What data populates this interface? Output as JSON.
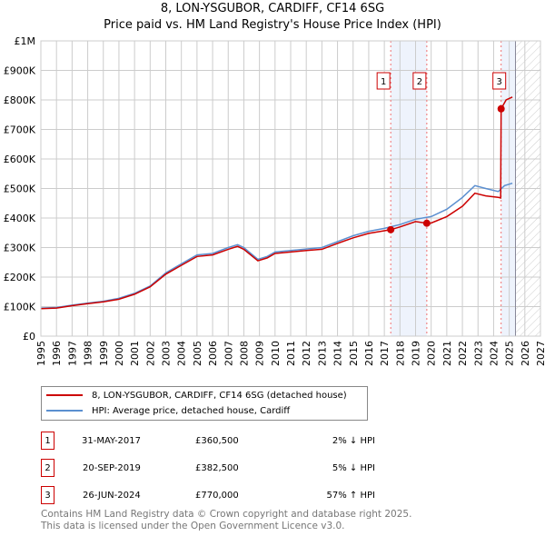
{
  "title": "8, LON-YSGUBOR, CARDIFF, CF14 6SG",
  "subtitle": "Price paid vs. HM Land Registry's House Price Index (HPI)",
  "chart_data": {
    "type": "line",
    "xlim": [
      1995,
      2027
    ],
    "ylim": [
      0,
      1000000
    ],
    "x_ticks": [
      1995,
      1996,
      1997,
      1998,
      1999,
      2000,
      2001,
      2002,
      2003,
      2004,
      2005,
      2006,
      2007,
      2008,
      2009,
      2010,
      2011,
      2012,
      2013,
      2014,
      2015,
      2016,
      2017,
      2018,
      2019,
      2020,
      2021,
      2022,
      2023,
      2024,
      2025,
      2026,
      2027
    ],
    "y_ticks": [
      0,
      100000,
      200000,
      300000,
      400000,
      500000,
      600000,
      700000,
      800000,
      900000,
      1000000
    ],
    "y_tick_labels": [
      "£0",
      "£100K",
      "£200K",
      "£300K",
      "£400K",
      "£500K",
      "£600K",
      "£700K",
      "£800K",
      "£900K",
      "£1M"
    ],
    "forecast_start": 2025.4,
    "series": [
      {
        "name": "8, LON-YSGUBOR, CARDIFF, CF14 6SG (detached house)",
        "color": "#cc0000",
        "x": [
          1995,
          1996,
          1997,
          1998,
          1999,
          2000,
          2001,
          2002,
          2003,
          2004,
          2005,
          2006,
          2007,
          2007.6,
          2008,
          2008.9,
          2009.5,
          2010,
          2011,
          2012,
          2013,
          2014,
          2015,
          2016,
          2017,
          2017.41,
          2018,
          2019,
          2019.72,
          2020,
          2021,
          2022,
          2022.8,
          2023.5,
          2024.3,
          2024.45,
          2024.48,
          2024.8,
          2025.2
        ],
        "y": [
          93000,
          95000,
          103000,
          110000,
          116000,
          125000,
          142000,
          167000,
          210000,
          240000,
          270000,
          275000,
          294000,
          304000,
          294000,
          255000,
          265000,
          280000,
          285000,
          290000,
          294000,
          314000,
          333000,
          348000,
          357000,
          360500,
          370000,
          388000,
          382500,
          383000,
          405000,
          440000,
          484000,
          475000,
          470000,
          468000,
          770000,
          800000,
          810000
        ]
      },
      {
        "name": "HPI: Average price, detached house, Cardiff",
        "color": "#5b8fd0",
        "x": [
          1995,
          1996,
          1997,
          1998,
          1999,
          2000,
          2001,
          2002,
          2003,
          2004,
          2005,
          2006,
          2007,
          2007.6,
          2008,
          2008.9,
          2009.5,
          2010,
          2011,
          2012,
          2013,
          2014,
          2015,
          2016,
          2017,
          2018,
          2019,
          2020,
          2021,
          2022,
          2022.8,
          2023.5,
          2024.3,
          2024.7,
          2025.2
        ],
        "y": [
          95000,
          97000,
          105000,
          112000,
          118000,
          128000,
          145000,
          170000,
          214000,
          245000,
          275000,
          280000,
          300000,
          310000,
          300000,
          260000,
          270000,
          285000,
          290000,
          295000,
          300000,
          320000,
          340000,
          355000,
          365000,
          378000,
          396000,
          405000,
          430000,
          470000,
          510000,
          500000,
          490000,
          510000,
          518000
        ]
      }
    ],
    "sales": [
      {
        "label": "1",
        "x": 2017.41,
        "y": 360500
      },
      {
        "label": "2",
        "x": 2019.72,
        "y": 382500
      },
      {
        "label": "3",
        "x": 2024.48,
        "y": 770000
      }
    ],
    "legend_placement": "bottom"
  },
  "legend": {
    "price_paid": "8, LON-YSGUBOR, CARDIFF, CF14 6SG (detached house)",
    "hpi": "HPI: Average price, detached house, Cardiff"
  },
  "transactions": [
    {
      "num": "1",
      "date": "31-MAY-2017",
      "price": "£360,500",
      "delta": "2% ↓ HPI"
    },
    {
      "num": "2",
      "date": "20-SEP-2019",
      "price": "£382,500",
      "delta": "5% ↓ HPI"
    },
    {
      "num": "3",
      "date": "26-JUN-2024",
      "price": "£770,000",
      "delta": "57% ↑ HPI"
    }
  ],
  "footer": {
    "line1": "Contains HM Land Registry data © Crown copyright and database right 2025.",
    "line2": "This data is licensed under the Open Government Licence v3.0."
  }
}
